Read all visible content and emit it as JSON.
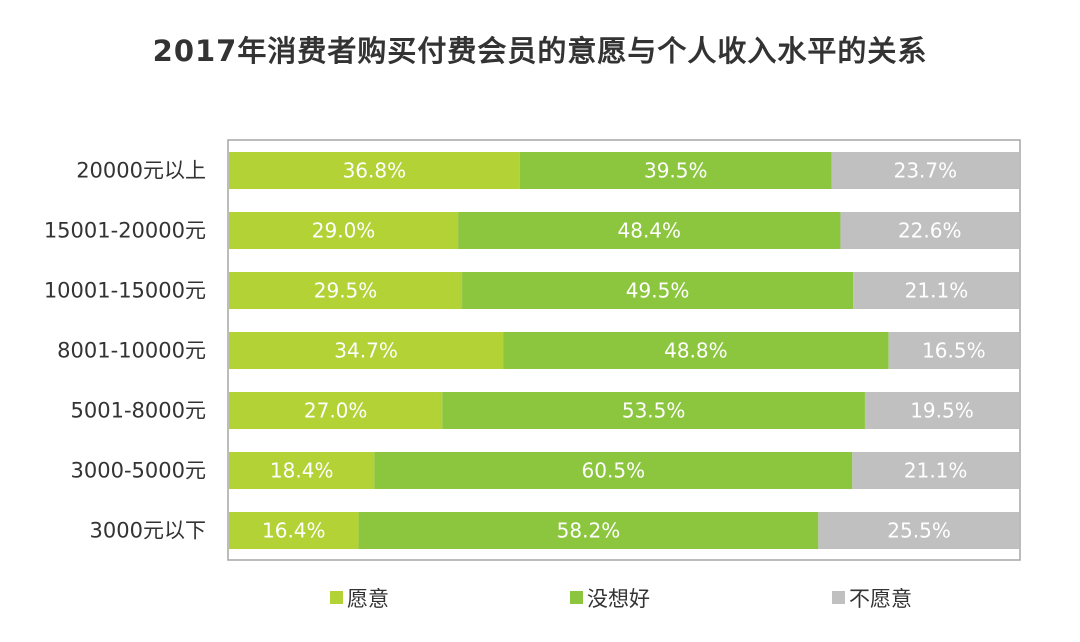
{
  "chart_data": {
    "type": "bar",
    "orientation": "horizontal",
    "stacked": "percent",
    "title": "2017年消费者购买付费会员的意愿与个人收入水平的关系",
    "categories": [
      "20000元以上",
      "15001-20000元",
      "10001-15000元",
      "8001-10000元",
      "5001-8000元",
      "3000-5000元",
      "3000元以下"
    ],
    "series": [
      {
        "name": "愿意",
        "color": "#b2d235",
        "values": [
          36.8,
          29.0,
          29.5,
          34.7,
          27.0,
          18.4,
          16.4
        ],
        "labels": [
          "36.8%",
          "29.0%",
          "29.5%",
          "34.7%",
          "27.0%",
          "18.4%",
          "16.4%"
        ]
      },
      {
        "name": "没想好",
        "color": "#8cc63f",
        "values": [
          39.5,
          48.4,
          49.5,
          48.8,
          53.5,
          60.5,
          58.2
        ],
        "labels": [
          "39.5%",
          "48.4%",
          "49.5%",
          "48.8%",
          "53.5%",
          "60.5%",
          "58.2%"
        ]
      },
      {
        "name": "不愿意",
        "color": "#c0c0c0",
        "values": [
          23.7,
          22.6,
          21.1,
          16.5,
          19.5,
          21.1,
          25.5
        ],
        "labels": [
          "23.7%",
          "22.6%",
          "21.1%",
          "16.5%",
          "19.5%",
          "21.1%",
          "25.5%"
        ]
      }
    ],
    "xlim": [
      0,
      100
    ],
    "grid": false,
    "legend_position": "bottom"
  }
}
